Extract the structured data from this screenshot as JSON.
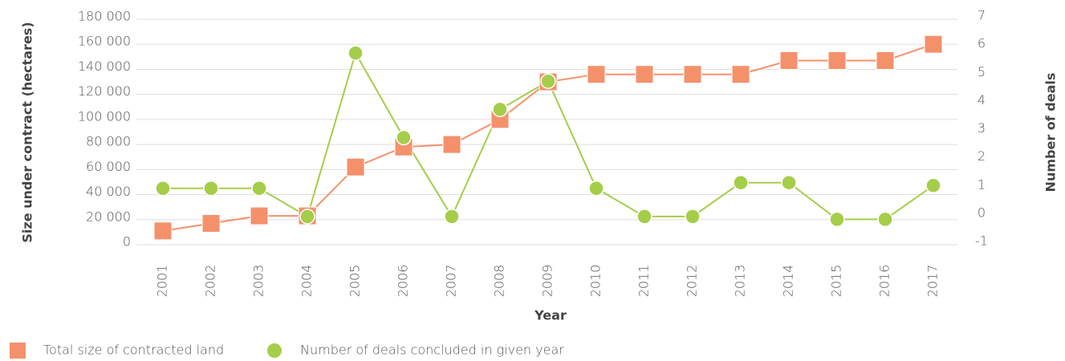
{
  "chart_data": {
    "type": "line",
    "xlabel": "Year",
    "ylabel": "Size under contract (hectares)",
    "y2label": "Number of deals",
    "categories": [
      "2001",
      "2002",
      "2003",
      "2004",
      "2005",
      "2006",
      "2007",
      "2008",
      "2009",
      "2010",
      "2011",
      "2012",
      "2013",
      "2014",
      "2015",
      "2016",
      "2017"
    ],
    "series": [
      {
        "name": "Total size of contracted land",
        "color": "#f4916b",
        "marker": "square",
        "values": [
          11000,
          17000,
          23000,
          23000,
          62000,
          78000,
          80000,
          100000,
          130000,
          136000,
          136000,
          136000,
          136000,
          147000,
          147000,
          147000,
          160000
        ]
      },
      {
        "name": "Number of deals concluded in given year",
        "color": "#a5cd4a",
        "marker": "circle",
        "axis": "y2",
        "values": [
          1,
          1,
          1,
          0,
          5.8,
          2.8,
          0,
          3.8,
          4.8,
          1,
          0,
          0,
          1.2,
          1.2,
          -0.1,
          -0.1,
          1.1
        ]
      }
    ],
    "ylim": [
      0,
      180000
    ],
    "yticks": [
      0,
      {
        "value": 20000,
        "label": "20 000"
      },
      {
        "value": 40000,
        "label": "40 000"
      },
      {
        "value": 60000,
        "label": "60 000"
      },
      {
        "value": 80000,
        "label": "80 000"
      },
      {
        "value": 100000,
        "label": "100 000"
      },
      {
        "value": 120000,
        "label": "120 000"
      },
      {
        "value": 140000,
        "label": "140 000"
      },
      {
        "value": 160000,
        "label": "160 000"
      },
      {
        "value": 180000,
        "label": "180 000"
      }
    ],
    "y2lim": [
      -1,
      7
    ],
    "y2ticks": [
      -1,
      0,
      1,
      2,
      3,
      4,
      5,
      6,
      7
    ],
    "grid": true
  }
}
